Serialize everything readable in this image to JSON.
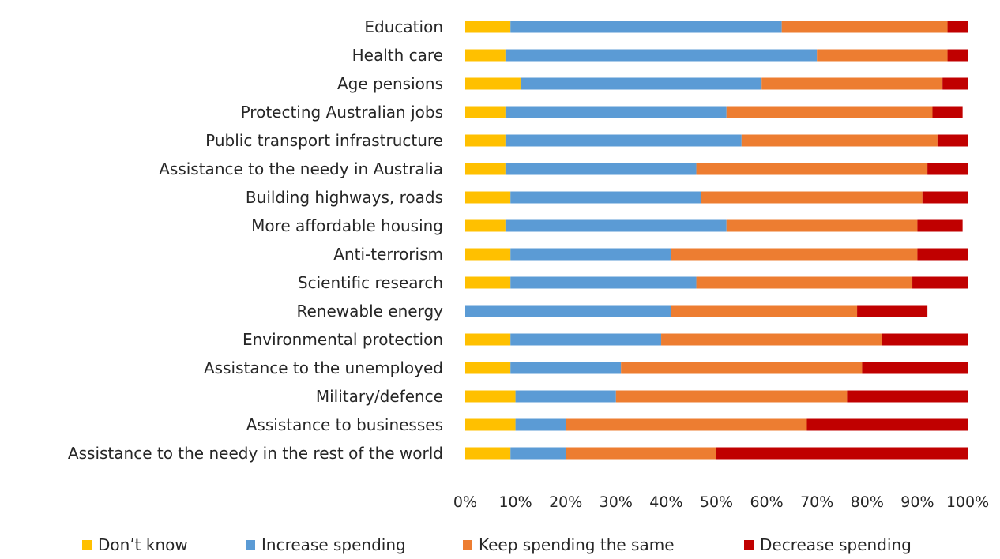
{
  "chart_data": {
    "type": "bar",
    "orientation": "horizontal",
    "stacked": true,
    "stacked_100_percent": true,
    "title": "",
    "xlabel": "",
    "ylabel": "",
    "xlim": [
      0,
      100
    ],
    "x_tick_labels": [
      "0%",
      "10%",
      "20%",
      "30%",
      "40%",
      "50%",
      "60%",
      "70%",
      "80%",
      "90%",
      "100%"
    ],
    "grid": false,
    "legend_position": "bottom",
    "categories": [
      "Education",
      "Health care",
      "Age pensions",
      "Protecting Australian jobs",
      "Public transport infrastructure",
      "Assistance to the needy in Australia",
      "Building highways, roads",
      "More affordable housing",
      "Anti-terrorism",
      "Scientific research",
      "Renewable energy",
      "Environmental protection",
      "Assistance to the unemployed",
      "Military/defence",
      "Assistance to businesses",
      "Assistance to the needy in the rest of the world"
    ],
    "series": [
      {
        "name": "Don’t know",
        "color": "#FFC000",
        "values": [
          9,
          8,
          11,
          8,
          8,
          8,
          9,
          8,
          9,
          9,
          0,
          9,
          9,
          10,
          10,
          9
        ]
      },
      {
        "name": "Increase spending",
        "color": "#5B9BD5",
        "values": [
          54,
          62,
          48,
          44,
          47,
          38,
          38,
          44,
          32,
          37,
          41,
          30,
          22,
          20,
          10,
          11
        ]
      },
      {
        "name": "Keep spending the same",
        "color": "#ED7D31",
        "values": [
          33,
          26,
          36,
          41,
          39,
          46,
          44,
          38,
          49,
          43,
          37,
          44,
          48,
          46,
          48,
          30
        ]
      },
      {
        "name": "Decrease spending",
        "color": "#C00000",
        "values": [
          4,
          4,
          5,
          6,
          6,
          8,
          9,
          9,
          10,
          11,
          14,
          17,
          21,
          24,
          32,
          50
        ]
      }
    ]
  }
}
